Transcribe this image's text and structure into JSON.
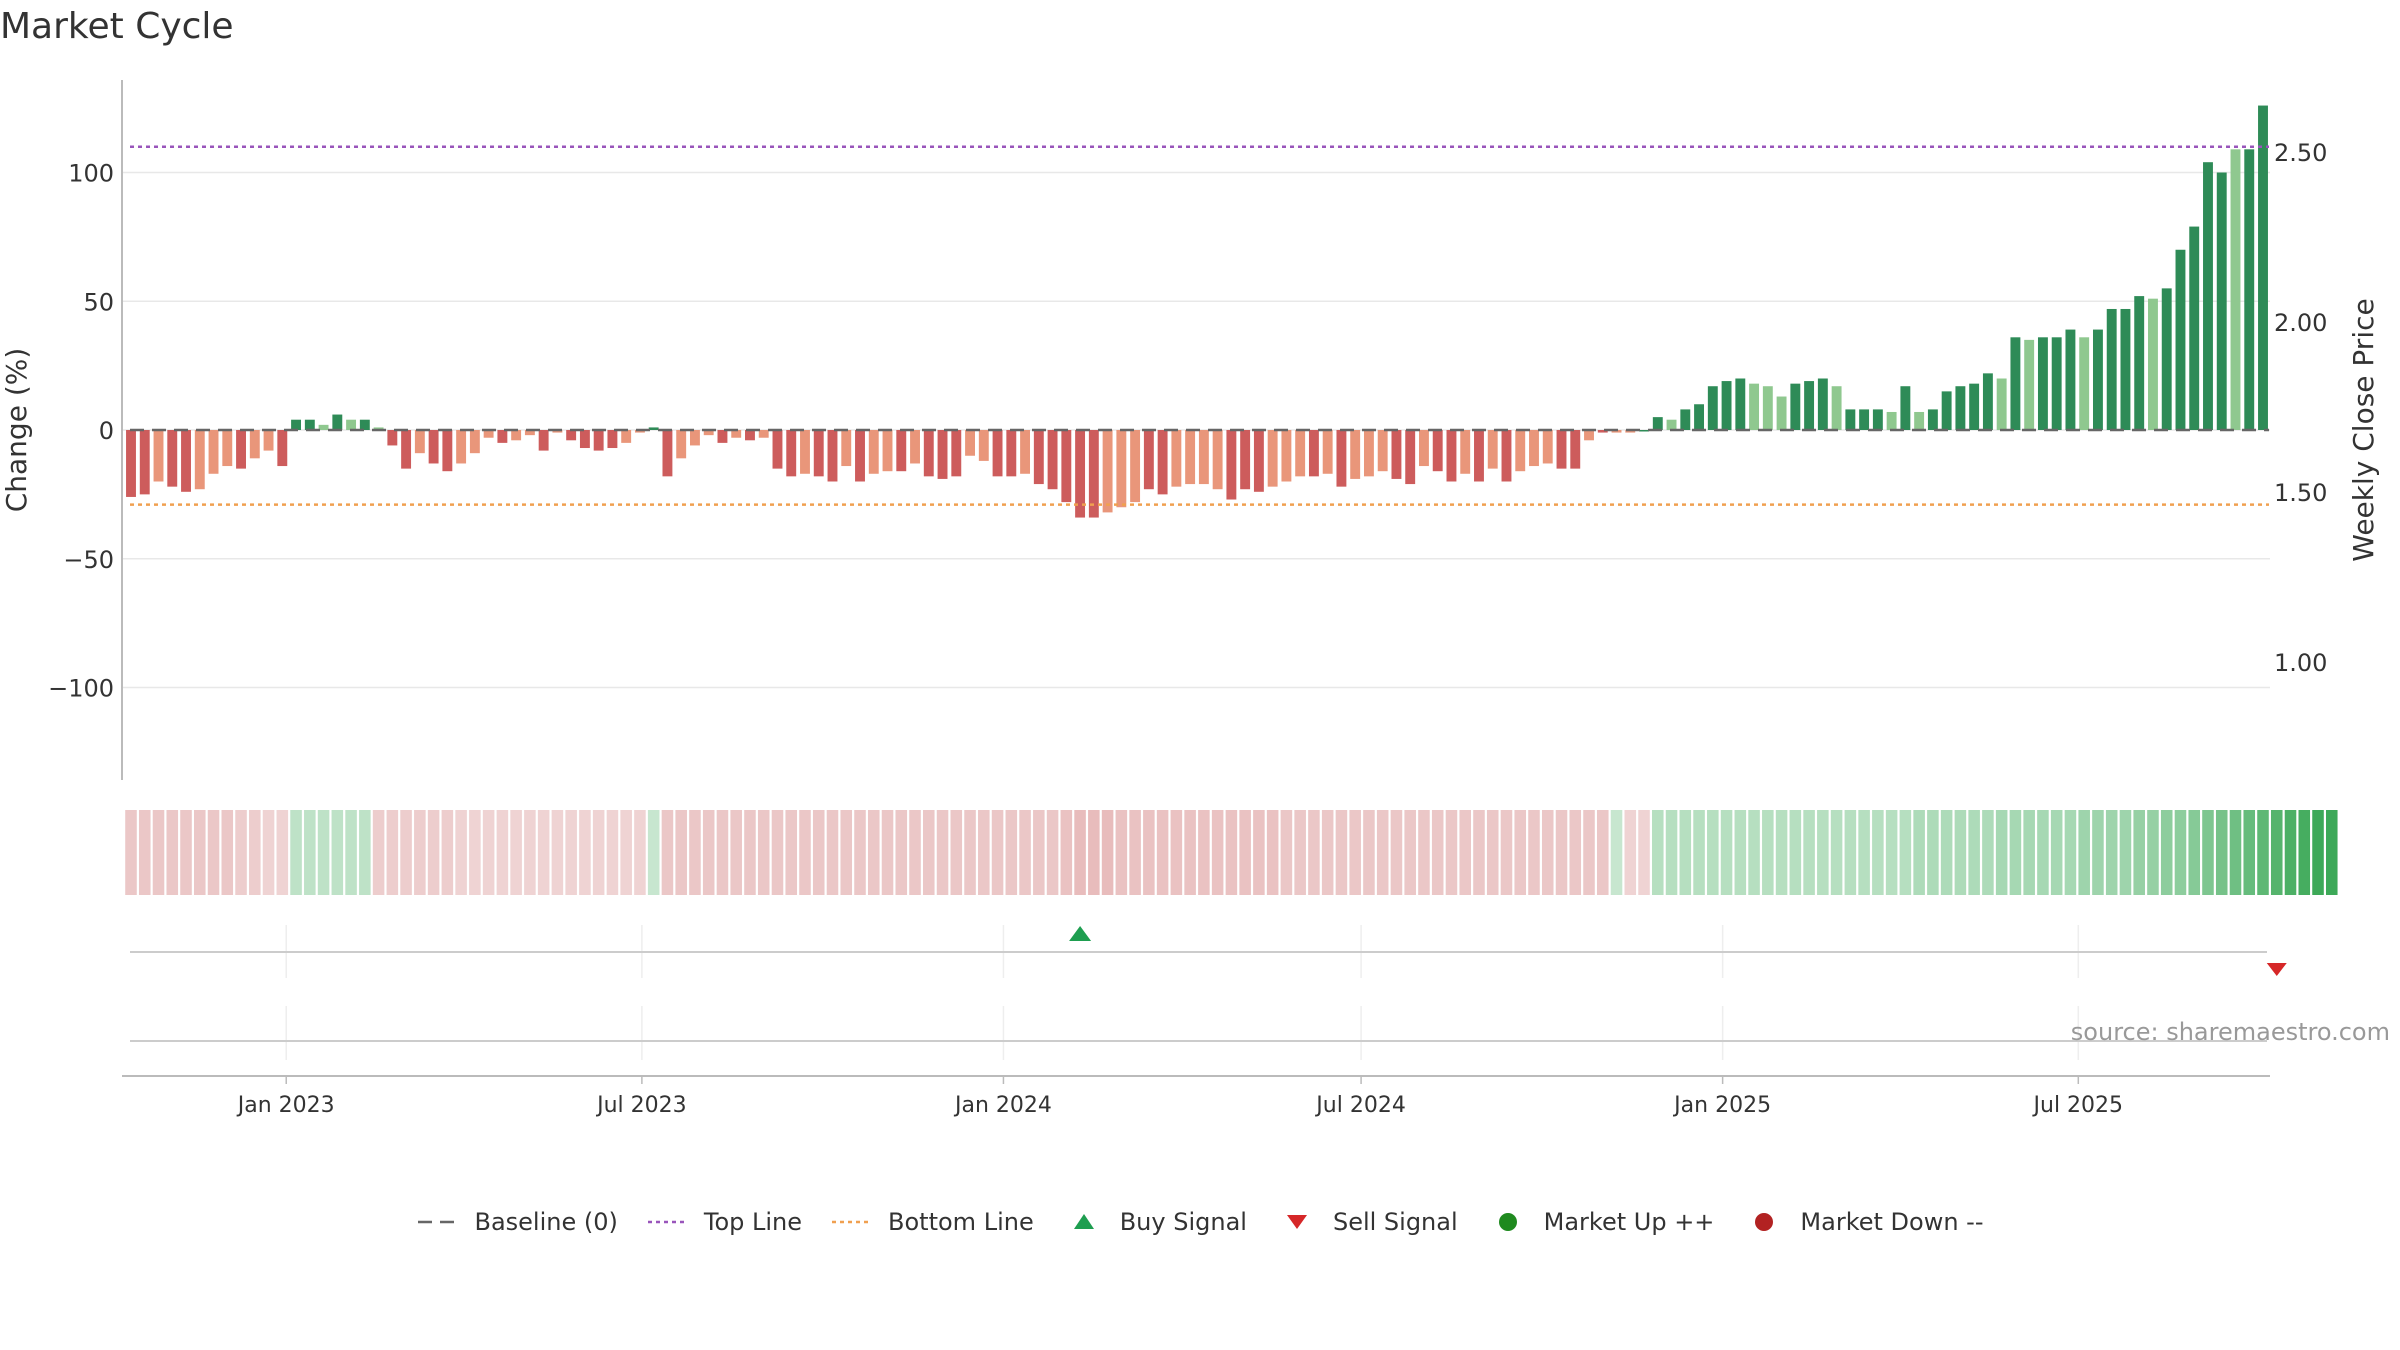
{
  "title": "Market Cycle",
  "source": "source: sharemaestro.com",
  "colors": {
    "strong_up": "#2e8b57",
    "weak_up": "#8fc88f",
    "strong_down": "#cd5c5c",
    "weak_down": "#e9967a",
    "top_line": "#9955bb",
    "bottom_line": "#f0a050",
    "baseline": "#666666",
    "buy": "#1e9e50",
    "sell": "#d62728",
    "market_up": "#1f8a1f",
    "market_down": "#b22222"
  },
  "chart_data": {
    "type": "bar",
    "title": "Market Cycle",
    "ylabel": "Change (%)",
    "y2label": "Weekly Close Price",
    "ylim": [
      -137,
      137
    ],
    "y2lim": [
      0.7,
      2.7
    ],
    "yticks": [
      "100",
      "50",
      "0",
      "−50",
      "−100"
    ],
    "y2ticks": [
      "2.50",
      "2.00",
      "1.50",
      "1.00"
    ],
    "xticks": [
      "Jan 2023",
      "Jul 2023",
      "Jan 2024",
      "Jul 2024",
      "Jan 2025",
      "Jul 2025"
    ],
    "start_date": "2022-10-14",
    "interval_days": 7,
    "top_line": 110,
    "bottom_line": -29,
    "baseline": 0,
    "values": [
      -26,
      -25,
      -20,
      -22,
      -24,
      -23,
      -17,
      -14,
      -15,
      -11,
      -8,
      -14,
      4,
      4,
      2,
      6,
      4,
      4,
      1,
      -6,
      -15,
      -9,
      -13,
      -16,
      -13,
      -9,
      -3,
      -5,
      -4,
      -2,
      -8,
      -1,
      -4,
      -7,
      -8,
      -7,
      -5,
      -1,
      1,
      -18,
      -11,
      -6,
      -2,
      -5,
      -3,
      -4,
      -3,
      -15,
      -18,
      -17,
      -18,
      -20,
      -14,
      -20,
      -17,
      -16,
      -16,
      -13,
      -18,
      -19,
      -18,
      -10,
      -12,
      -18,
      -18,
      -17,
      -21,
      -23,
      -28,
      -34,
      -34,
      -32,
      -30,
      -28,
      -23,
      -25,
      -22,
      -21,
      -21,
      -23,
      -27,
      -23,
      -24,
      -22,
      -20,
      -18,
      -18,
      -17,
      -22,
      -19,
      -18,
      -16,
      -19,
      -21,
      -14,
      -16,
      -20,
      -17,
      -20,
      -15,
      -20,
      -16,
      -14,
      -13,
      -15,
      -15,
      -4,
      -1,
      -1,
      -1,
      0,
      5,
      4,
      8,
      10,
      17,
      19,
      20,
      18,
      17,
      13,
      18,
      19,
      20,
      17,
      8,
      8,
      8,
      7,
      17,
      7,
      8,
      15,
      17,
      18,
      22,
      20,
      36,
      35,
      36,
      36,
      39,
      36,
      39,
      47,
      47,
      52,
      51,
      55,
      70,
      79,
      104,
      100,
      109,
      109,
      126
    ],
    "strength": [
      "s",
      "s",
      "w",
      "s",
      "s",
      "w",
      "w",
      "w",
      "s",
      "w",
      "w",
      "s",
      "s",
      "s",
      "w",
      "s",
      "w",
      "s",
      "w",
      "s",
      "s",
      "w",
      "s",
      "s",
      "w",
      "w",
      "w",
      "s",
      "w",
      "w",
      "s",
      "w",
      "s",
      "s",
      "s",
      "s",
      "w",
      "w",
      "s",
      "s",
      "w",
      "w",
      "w",
      "s",
      "w",
      "s",
      "w",
      "s",
      "s",
      "w",
      "s",
      "s",
      "w",
      "s",
      "w",
      "w",
      "s",
      "w",
      "s",
      "s",
      "s",
      "w",
      "w",
      "s",
      "s",
      "w",
      "s",
      "s",
      "s",
      "s",
      "s",
      "w",
      "w",
      "w",
      "s",
      "s",
      "w",
      "w",
      "w",
      "w",
      "s",
      "s",
      "s",
      "w",
      "w",
      "w",
      "s",
      "w",
      "s",
      "w",
      "w",
      "w",
      "s",
      "s",
      "w",
      "s",
      "s",
      "w",
      "s",
      "w",
      "s",
      "w",
      "w",
      "w",
      "s",
      "s",
      "w",
      "s",
      "w",
      "w",
      "s",
      "s",
      "w",
      "s",
      "s",
      "s",
      "s",
      "s",
      "w",
      "w",
      "w",
      "s",
      "s",
      "s",
      "w",
      "s",
      "s",
      "s",
      "w",
      "s",
      "w",
      "s",
      "s",
      "s",
      "s",
      "s",
      "w",
      "s",
      "w",
      "s",
      "s",
      "s",
      "w",
      "s",
      "s",
      "s",
      "s",
      "w",
      "s",
      "s",
      "s",
      "s",
      "s",
      "w",
      "s",
      "s",
      "s"
    ],
    "heat_strip": [
      -0.3,
      -0.3,
      -0.3,
      -0.3,
      -0.3,
      -0.3,
      -0.3,
      -0.3,
      -0.25,
      -0.25,
      -0.2,
      -0.2,
      0.2,
      0.2,
      0.2,
      0.2,
      0.2,
      0.2,
      -0.25,
      -0.25,
      -0.25,
      -0.25,
      -0.25,
      -0.25,
      -0.2,
      -0.2,
      -0.2,
      -0.2,
      -0.2,
      -0.2,
      -0.2,
      -0.2,
      -0.2,
      -0.2,
      -0.2,
      -0.2,
      -0.2,
      -0.2,
      0.15,
      -0.3,
      -0.3,
      -0.3,
      -0.3,
      -0.3,
      -0.3,
      -0.3,
      -0.3,
      -0.3,
      -0.3,
      -0.3,
      -0.3,
      -0.3,
      -0.3,
      -0.3,
      -0.3,
      -0.3,
      -0.3,
      -0.3,
      -0.3,
      -0.3,
      -0.3,
      -0.3,
      -0.3,
      -0.3,
      -0.3,
      -0.3,
      -0.3,
      -0.3,
      -0.35,
      -0.4,
      -0.4,
      -0.4,
      -0.35,
      -0.35,
      -0.35,
      -0.35,
      -0.35,
      -0.35,
      -0.35,
      -0.35,
      -0.35,
      -0.35,
      -0.35,
      -0.35,
      -0.3,
      -0.3,
      -0.3,
      -0.3,
      -0.3,
      -0.3,
      -0.3,
      -0.3,
      -0.3,
      -0.3,
      -0.3,
      -0.3,
      -0.3,
      -0.3,
      -0.3,
      -0.3,
      -0.3,
      -0.3,
      -0.3,
      -0.3,
      -0.3,
      -0.3,
      -0.3,
      -0.3,
      0.15,
      -0.2,
      -0.2,
      0.25,
      0.25,
      0.25,
      0.25,
      0.25,
      0.25,
      0.25,
      0.25,
      0.25,
      0.25,
      0.25,
      0.25,
      0.25,
      0.25,
      0.25,
      0.25,
      0.25,
      0.25,
      0.25,
      0.3,
      0.3,
      0.3,
      0.3,
      0.3,
      0.3,
      0.35,
      0.35,
      0.35,
      0.35,
      0.35,
      0.35,
      0.4,
      0.4,
      0.4,
      0.4,
      0.45,
      0.45,
      0.5,
      0.5,
      0.55,
      0.6,
      0.65,
      0.7,
      0.75,
      0.8,
      0.85,
      0.9,
      0.95,
      1.0,
      1.0
    ],
    "buy_signals": [
      "2024-02-09"
    ],
    "sell_signals": [
      "2025-10-10"
    ],
    "legend": [
      {
        "label": "Baseline (0)",
        "symbol": "dash",
        "color": "#666666"
      },
      {
        "label": "Top Line",
        "symbol": "dotted",
        "color": "#9955bb"
      },
      {
        "label": "Bottom Line",
        "symbol": "dotted",
        "color": "#f0a050"
      },
      {
        "label": "Buy Signal",
        "symbol": "triangle-up",
        "color": "#1e9e50"
      },
      {
        "label": "Sell Signal",
        "symbol": "triangle-down",
        "color": "#d62728"
      },
      {
        "label": "Market Up ++",
        "symbol": "circle",
        "color": "#1f8a1f"
      },
      {
        "label": "Market Down --",
        "symbol": "circle",
        "color": "#b22222"
      }
    ],
    "legend_position": "bottom"
  }
}
